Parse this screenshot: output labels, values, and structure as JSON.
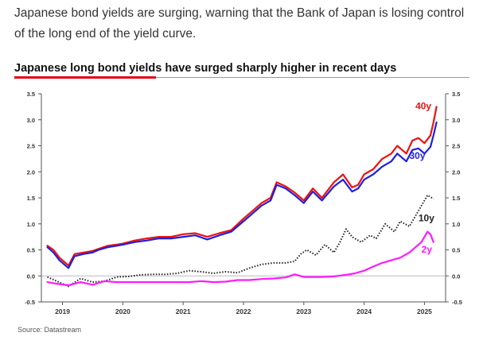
{
  "header": {
    "intro": "Japanese bond yields are surging, warning that the Bank of Japan is losing control of the long end of the yield curve."
  },
  "chart_data": {
    "type": "line",
    "title": "Japanese long bond yields have surged sharply higher in recent days",
    "xlabel": "",
    "ylabel": "",
    "xlim": [
      2018.65,
      2025.35
    ],
    "ylim": [
      -0.5,
      3.5
    ],
    "y_ticks": [
      "-0.5",
      "0.0",
      "0.5",
      "1.0",
      "1.5",
      "2.0",
      "2.5",
      "3.0",
      "3.5"
    ],
    "x_ticks": [
      "2019",
      "2020",
      "2021",
      "2022",
      "2023",
      "2024",
      "2025"
    ],
    "grid": false,
    "zero_line": true,
    "colors": {
      "accent": "#e30613",
      "30y": "#1f1fe0",
      "10y": "#222222",
      "2y": "#ff1aff"
    },
    "series": [
      {
        "name": "40y",
        "color": "#ee1111",
        "style": "solid",
        "x": [
          2018.75,
          2018.85,
          2018.95,
          2019.1,
          2019.2,
          2019.35,
          2019.5,
          2019.6,
          2019.75,
          2019.9,
          2020.0,
          2020.2,
          2020.4,
          2020.6,
          2020.8,
          2021.0,
          2021.2,
          2021.4,
          2021.6,
          2021.8,
          2022.0,
          2022.15,
          2022.3,
          2022.45,
          2022.55,
          2022.7,
          2022.85,
          2023.0,
          2023.15,
          2023.3,
          2023.5,
          2023.65,
          2023.8,
          2023.9,
          2024.0,
          2024.15,
          2024.3,
          2024.45,
          2024.55,
          2024.7,
          2024.8,
          2024.9,
          2025.0,
          2025.1,
          2025.15,
          2025.2
        ],
        "y": [
          0.58,
          0.5,
          0.35,
          0.2,
          0.42,
          0.45,
          0.48,
          0.52,
          0.58,
          0.6,
          0.62,
          0.68,
          0.72,
          0.75,
          0.75,
          0.8,
          0.82,
          0.75,
          0.82,
          0.88,
          1.1,
          1.25,
          1.4,
          1.5,
          1.8,
          1.72,
          1.6,
          1.45,
          1.68,
          1.5,
          1.8,
          1.95,
          1.7,
          1.75,
          1.95,
          2.05,
          2.25,
          2.35,
          2.5,
          2.35,
          2.6,
          2.65,
          2.55,
          2.7,
          2.95,
          3.25
        ]
      },
      {
        "name": "30y",
        "color": "#1f1fe0",
        "style": "solid",
        "x": [
          2018.75,
          2018.85,
          2018.95,
          2019.1,
          2019.2,
          2019.35,
          2019.5,
          2019.6,
          2019.75,
          2019.9,
          2020.0,
          2020.2,
          2020.4,
          2020.6,
          2020.8,
          2021.0,
          2021.2,
          2021.4,
          2021.6,
          2021.8,
          2022.0,
          2022.15,
          2022.3,
          2022.45,
          2022.55,
          2022.7,
          2022.85,
          2023.0,
          2023.15,
          2023.3,
          2023.5,
          2023.65,
          2023.8,
          2023.9,
          2024.0,
          2024.15,
          2024.3,
          2024.45,
          2024.55,
          2024.7,
          2024.8,
          2024.9,
          2025.0,
          2025.1,
          2025.15,
          2025.2
        ],
        "y": [
          0.55,
          0.45,
          0.3,
          0.15,
          0.38,
          0.42,
          0.45,
          0.5,
          0.55,
          0.58,
          0.6,
          0.65,
          0.68,
          0.72,
          0.72,
          0.75,
          0.78,
          0.7,
          0.78,
          0.85,
          1.05,
          1.2,
          1.35,
          1.45,
          1.75,
          1.68,
          1.55,
          1.4,
          1.62,
          1.45,
          1.72,
          1.85,
          1.62,
          1.68,
          1.85,
          1.95,
          2.1,
          2.2,
          2.35,
          2.2,
          2.42,
          2.45,
          2.35,
          2.48,
          2.7,
          2.95
        ]
      },
      {
        "name": "10y",
        "color": "#222222",
        "style": "dotted",
        "x": [
          2018.75,
          2018.9,
          2019.1,
          2019.3,
          2019.5,
          2019.7,
          2019.9,
          2020.1,
          2020.3,
          2020.5,
          2020.7,
          2020.9,
          2021.1,
          2021.3,
          2021.5,
          2021.7,
          2021.9,
          2022.1,
          2022.3,
          2022.5,
          2022.7,
          2022.85,
          2022.95,
          2023.05,
          2023.2,
          2023.35,
          2023.5,
          2023.6,
          2023.7,
          2023.8,
          2023.95,
          2024.1,
          2024.2,
          2024.35,
          2024.5,
          2024.6,
          2024.75,
          2024.85,
          2024.95,
          2025.05,
          2025.15
        ],
        "y": [
          -0.02,
          -0.1,
          -0.2,
          -0.05,
          -0.12,
          -0.1,
          -0.02,
          -0.01,
          0.02,
          0.03,
          0.03,
          0.05,
          0.1,
          0.08,
          0.05,
          0.08,
          0.06,
          0.15,
          0.22,
          0.25,
          0.25,
          0.28,
          0.42,
          0.5,
          0.4,
          0.6,
          0.45,
          0.65,
          0.9,
          0.75,
          0.65,
          0.78,
          0.72,
          1.0,
          0.85,
          1.05,
          0.95,
          1.15,
          1.35,
          1.55,
          1.48
        ]
      },
      {
        "name": "2y",
        "color": "#ff1aff",
        "style": "solid",
        "x": [
          2018.75,
          2018.9,
          2019.1,
          2019.3,
          2019.5,
          2019.7,
          2019.9,
          2020.1,
          2020.3,
          2020.5,
          2020.7,
          2020.9,
          2021.1,
          2021.3,
          2021.5,
          2021.7,
          2021.9,
          2022.1,
          2022.3,
          2022.5,
          2022.7,
          2022.85,
          2023.0,
          2023.15,
          2023.3,
          2023.5,
          2023.7,
          2023.85,
          2024.0,
          2024.15,
          2024.3,
          2024.45,
          2024.6,
          2024.75,
          2024.85,
          2024.95,
          2025.05,
          2025.1,
          2025.15
        ],
        "y": [
          -0.12,
          -0.15,
          -0.18,
          -0.12,
          -0.17,
          -0.1,
          -0.12,
          -0.12,
          -0.12,
          -0.12,
          -0.12,
          -0.12,
          -0.12,
          -0.1,
          -0.12,
          -0.11,
          -0.08,
          -0.08,
          -0.06,
          -0.05,
          -0.03,
          0.03,
          -0.02,
          -0.02,
          -0.02,
          -0.01,
          0.02,
          0.05,
          0.1,
          0.18,
          0.25,
          0.3,
          0.35,
          0.45,
          0.55,
          0.65,
          0.85,
          0.8,
          0.65
        ]
      }
    ],
    "annotations": [
      {
        "text": "40y",
        "color": "#ee1111",
        "x": 2024.85,
        "y": 3.2
      },
      {
        "text": "30y",
        "color": "#1f1fe0",
        "x": 2024.75,
        "y": 2.25
      },
      {
        "text": "10y",
        "color": "#222222",
        "x": 2024.9,
        "y": 1.05
      },
      {
        "text": "2y",
        "color": "#ff1aff",
        "x": 2024.95,
        "y": 0.45
      }
    ],
    "source": "Source: Datastream"
  }
}
